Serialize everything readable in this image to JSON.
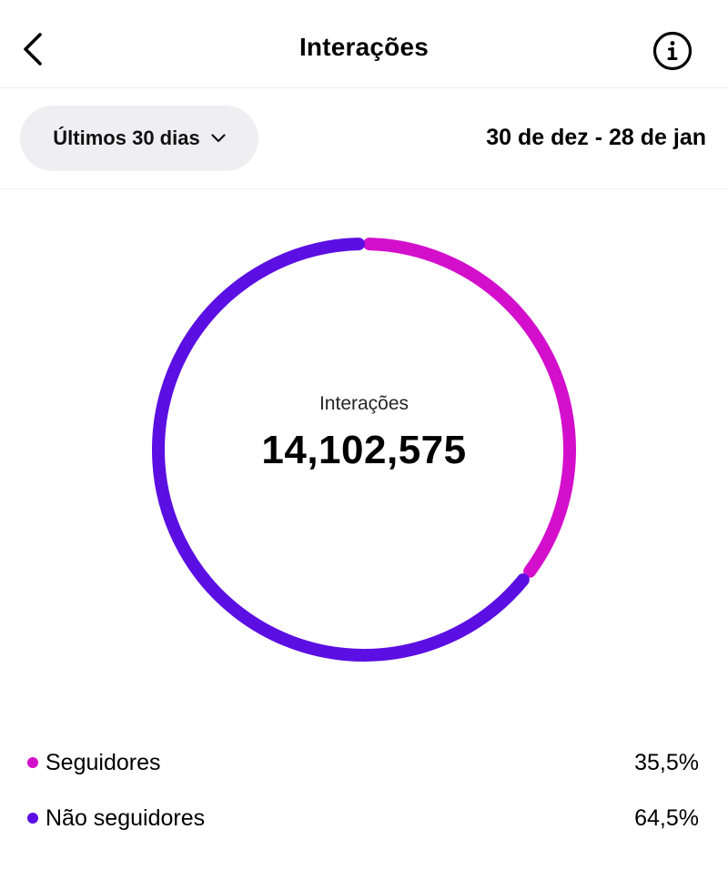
{
  "header": {
    "title": "Interações",
    "back_icon": "chevron-left-icon",
    "info_icon": "info-icon"
  },
  "filter": {
    "range_label": "Últimos 30 dias",
    "dropdown_icon": "chevron-down-icon",
    "date_range": "30 de dez - 28 de jan"
  },
  "summary": {
    "label": "Interações",
    "total": "14,102,575"
  },
  "colors": {
    "followers": "#d30fcc",
    "non_followers": "#5b0fe2"
  },
  "chart_data": {
    "type": "pie",
    "categories": [
      "Seguidores",
      "Não seguidores"
    ],
    "values": [
      35.5,
      64.5
    ],
    "title": "Interações",
    "total": "14,102,575"
  },
  "legend": [
    {
      "name": "Seguidores",
      "percent": "35,5%",
      "color": "#d30fcc"
    },
    {
      "name": "Não seguidores",
      "percent": "64,5%",
      "color": "#5b0fe2"
    }
  ]
}
